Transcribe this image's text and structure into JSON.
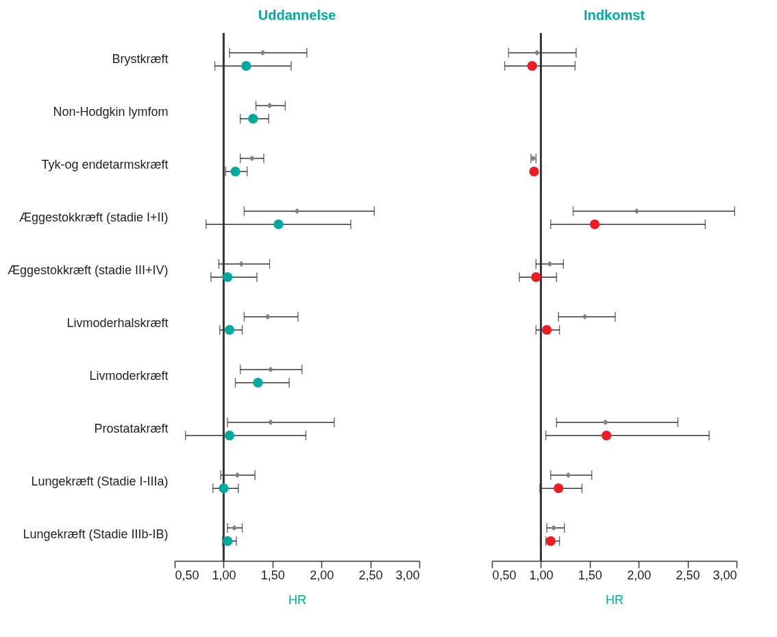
{
  "chart_data": [
    {
      "type": "scatter",
      "orientation": "horizontal",
      "title": "Uddannelse",
      "xlabel": "HR",
      "categories": [
        "Brystkræft",
        "Non-Hodgkin lymfom",
        "Tyk-og endetarmskræft",
        "Æggestokkræft (stadie I+II)",
        "Æggestokkræft (stadie III+IV)",
        "Livmoderhalskræft",
        "Livmoderkræft",
        "Prostatakræft",
        "Lungekræft (Stadie I-IIIa)",
        "Lungekræft (Stadie IIIb-IB)"
      ],
      "series": [
        {
          "color": "#808080",
          "marker": "diamond",
          "values": [
            1.4,
            1.47,
            1.29,
            1.75,
            1.18,
            1.45,
            1.48,
            1.48,
            1.14,
            1.11
          ],
          "errors": [
            [
              1.06,
              1.85
            ],
            [
              1.33,
              1.63
            ],
            [
              1.17,
              1.41
            ],
            [
              1.21,
              2.54
            ],
            [
              0.95,
              1.47
            ],
            [
              1.21,
              1.76
            ],
            [
              1.17,
              1.8
            ],
            [
              1.04,
              2.13
            ],
            [
              0.97,
              1.32
            ],
            [
              1.04,
              1.19
            ]
          ]
        },
        {
          "color": "#00a99d",
          "marker": "circle",
          "values": [
            1.23,
            1.3,
            1.12,
            1.56,
            1.04,
            1.06,
            1.35,
            1.06,
            1.0,
            1.04
          ],
          "errors": [
            [
              0.91,
              1.69
            ],
            [
              1.17,
              1.46
            ],
            [
              1.02,
              1.24
            ],
            [
              0.82,
              2.3
            ],
            [
              0.87,
              1.34
            ],
            [
              0.96,
              1.19
            ],
            [
              1.12,
              1.67
            ],
            [
              0.61,
              1.84
            ],
            [
              0.89,
              1.15
            ],
            [
              0.99,
              1.13
            ]
          ]
        }
      ],
      "xlim": [
        0.5,
        3
      ],
      "xticks": [
        {
          "value": 0.5,
          "label": "0,50"
        },
        {
          "value": 1,
          "label": "1,00"
        },
        {
          "value": 1.5,
          "label": "1,50"
        },
        {
          "value": 2,
          "label": "2,00"
        },
        {
          "value": 2.5,
          "label": "2,50"
        },
        {
          "value": 3,
          "label": "3,00"
        }
      ],
      "ref_lines": [
        {
          "axis": "x",
          "value": 1,
          "color": "#333333"
        }
      ],
      "grid": false,
      "legend": false
    },
    {
      "type": "scatter",
      "orientation": "horizontal",
      "title": "Indkomst",
      "xlabel": "HR",
      "tick_labels": "x",
      "categories": [
        null,
        null,
        null,
        null,
        null,
        null,
        null,
        null,
        null,
        null
      ],
      "series": [
        {
          "color": "#808080",
          "marker": "diamond",
          "values": [
            0.96,
            null,
            0.92,
            1.98,
            1.09,
            1.45,
            null,
            1.66,
            1.28,
            1.13
          ],
          "errors": [
            [
              0.67,
              1.36
            ],
            null,
            [
              0.9,
              0.95
            ],
            [
              1.33,
              2.98
            ],
            [
              0.95,
              1.23
            ],
            [
              1.18,
              1.76
            ],
            null,
            [
              1.16,
              2.4
            ],
            [
              1.1,
              1.52
            ],
            [
              1.06,
              1.24
            ]
          ]
        },
        {
          "color": "#ed1c24",
          "marker": "circle",
          "values": [
            0.91,
            null,
            0.93,
            1.55,
            0.95,
            1.06,
            null,
            1.67,
            1.18,
            1.1
          ],
          "errors": [
            [
              0.63,
              1.35
            ],
            null,
            null,
            [
              1.1,
              2.68
            ],
            [
              0.78,
              1.16
            ],
            [
              0.95,
              1.19
            ],
            null,
            [
              1.05,
              2.72
            ],
            [
              0.99,
              1.42
            ],
            [
              1.05,
              1.19
            ]
          ]
        }
      ],
      "xlim": [
        0.5,
        3
      ],
      "xticks": [
        {
          "value": 0.5,
          "label": "0,50"
        },
        {
          "value": 1,
          "label": "1,00"
        },
        {
          "value": 1.5,
          "label": "1,50"
        },
        {
          "value": 2,
          "label": "2,00"
        },
        {
          "value": 2.5,
          "label": "2,50"
        },
        {
          "value": 3,
          "label": "3,00"
        }
      ],
      "ref_lines": [
        {
          "axis": "x",
          "value": 1,
          "color": "#333333"
        }
      ],
      "grid": false,
      "legend": false
    }
  ]
}
